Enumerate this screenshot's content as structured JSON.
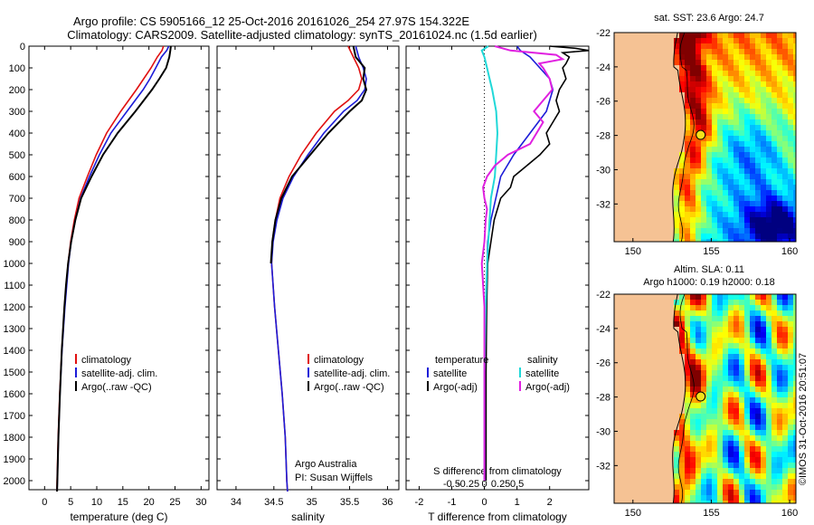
{
  "header": {
    "line1": "Argo profile: CS 5905166_12 25-Oct-2016 20161026_254 27.97S 154.322E",
    "line2": "Climatology: CARS2009. Satellite-adjusted climatology: synTS_20161024.nc (1.5d earlier)"
  },
  "chart_data": [
    {
      "type": "line",
      "panel": "temperature",
      "xlabel": "temperature (deg C)",
      "ylabel": "",
      "xlim": [
        -3,
        31.5
      ],
      "ylim": [
        2080,
        0
      ],
      "x_ticks": [
        "0",
        "5",
        "10",
        "15",
        "20",
        "25",
        "30"
      ],
      "y_ticks": [
        "0",
        "100",
        "200",
        "300",
        "400",
        "500",
        "600",
        "700",
        "800",
        "900",
        "1000",
        "1100",
        "1200",
        "1300",
        "1400",
        "1500",
        "1600",
        "1700",
        "1800",
        "1900",
        "2000"
      ],
      "legend": [
        "climatology",
        "satellite-adj. clim.",
        "Argo(..raw -QC)"
      ],
      "series": [
        {
          "name": "climatology",
          "color": "#e01010",
          "depth": [
            0,
            20,
            50,
            100,
            150,
            200,
            300,
            400,
            500,
            600,
            700,
            800,
            900,
            1000,
            1200,
            1400,
            1600,
            1800,
            2000,
            2050
          ],
          "values": [
            22.8,
            22.5,
            21.6,
            20.4,
            19.0,
            17.6,
            14.6,
            11.9,
            9.9,
            8.2,
            6.6,
            5.7,
            5.0,
            4.5,
            3.8,
            3.3,
            2.9,
            2.6,
            2.4,
            2.35
          ]
        },
        {
          "name": "satellite-adj. clim.",
          "color": "#1c1cd8",
          "depth": [
            0,
            20,
            50,
            100,
            150,
            200,
            300,
            400,
            500,
            600,
            700,
            800,
            900,
            1000,
            1200,
            1400,
            1600,
            1800,
            2000,
            2050
          ],
          "values": [
            23.8,
            23.4,
            22.4,
            21.3,
            20.2,
            18.9,
            15.8,
            12.7,
            10.5,
            8.6,
            6.9,
            5.9,
            5.1,
            4.6,
            3.9,
            3.35,
            2.95,
            2.65,
            2.45,
            2.4
          ]
        },
        {
          "name": "Argo(..raw -QC)",
          "color": "#000000",
          "depth": [
            0,
            20,
            50,
            100,
            150,
            200,
            300,
            400,
            500,
            600,
            700,
            800,
            900,
            1000,
            1100,
            1200,
            1400,
            1600,
            1800,
            2000,
            2050
          ],
          "values": [
            24.2,
            24.1,
            23.9,
            23.3,
            22.0,
            20.6,
            17.4,
            14.0,
            11.2,
            9.0,
            7.0,
            5.9,
            5.1,
            4.5,
            4.1,
            3.8,
            3.3,
            2.95,
            2.65,
            2.45,
            2.4
          ]
        }
      ]
    },
    {
      "type": "line",
      "panel": "salinity",
      "xlabel": "salinity",
      "xlim": [
        33.75,
        36.15
      ],
      "ylim": [
        2080,
        0
      ],
      "x_ticks": [
        "34",
        "34.5",
        "35",
        "35.5",
        "36"
      ],
      "legend": [
        "climatology",
        "satellite-adj. clim.",
        "Argo(..raw -QC)"
      ],
      "annotation": [
        "Argo Australia",
        "PI: Susan Wijffels"
      ],
      "series": [
        {
          "name": "climatology",
          "color": "#e01010",
          "depth": [
            0,
            50,
            100,
            150,
            200,
            250,
            300,
            400,
            500,
            600,
            700,
            800,
            900,
            1000,
            1200,
            1400,
            1600,
            1800,
            2000,
            2050
          ],
          "values": [
            35.48,
            35.55,
            35.62,
            35.66,
            35.62,
            35.48,
            35.3,
            35.06,
            34.86,
            34.7,
            34.58,
            34.52,
            34.48,
            34.47,
            34.51,
            34.56,
            34.61,
            34.65,
            34.67,
            34.68
          ]
        },
        {
          "name": "satellite-adj. clim.",
          "color": "#1c1cd8",
          "depth": [
            0,
            50,
            100,
            150,
            200,
            250,
            300,
            400,
            500,
            600,
            700,
            800,
            900,
            1000,
            1200,
            1400,
            1600,
            1800,
            2000,
            2050
          ],
          "values": [
            35.58,
            35.62,
            35.68,
            35.72,
            35.7,
            35.6,
            35.42,
            35.16,
            34.95,
            34.76,
            34.62,
            34.54,
            34.49,
            34.47,
            34.51,
            34.56,
            34.61,
            34.65,
            34.67,
            34.68
          ]
        },
        {
          "name": "Argo(..raw -QC)",
          "color": "#000000",
          "depth": [
            0,
            50,
            100,
            150,
            200,
            250,
            300,
            400,
            500,
            600,
            700,
            800,
            900,
            1000
          ],
          "values": [
            35.55,
            35.58,
            35.7,
            35.68,
            35.72,
            35.66,
            35.5,
            35.22,
            34.98,
            34.74,
            34.6,
            34.52,
            34.48,
            34.46
          ]
        }
      ]
    },
    {
      "type": "line",
      "panel": "difference",
      "xlabel_bottom": "T difference from climatology",
      "xlabel_top": "S difference from climatology",
      "xlim": [
        -2.4,
        3.2
      ],
      "ylim": [
        2080,
        0
      ],
      "x_ticks_T": [
        "-2",
        "-1",
        "0",
        "1",
        "2"
      ],
      "x_ticks_S": [
        "-0.5",
        "-0.25",
        "0",
        "0.25",
        "0.5"
      ],
      "legend_temperature": {
        "title": "temperature",
        "items": [
          "satellite",
          "Argo(-adj)"
        ]
      },
      "legend_salinity": {
        "title": "salinity",
        "items": [
          "satellite",
          "Argo(-adj)"
        ]
      },
      "series": [
        {
          "name": "temperature satellite",
          "color": "#1c1cd8",
          "depth": [
            0,
            20,
            50,
            100,
            150,
            200,
            300,
            400,
            500,
            600,
            700,
            800,
            900,
            1000,
            1200,
            1500,
            1800,
            2000
          ],
          "values": [
            1.0,
            1.1,
            1.4,
            1.7,
            2.0,
            2.1,
            1.9,
            1.4,
            0.9,
            0.5,
            0.35,
            0.2,
            0.1,
            0.08,
            0.05,
            0.03,
            0.02,
            0.02
          ]
        },
        {
          "name": "temperature Argo(-adj)",
          "color": "#000000",
          "depth": [
            0,
            10,
            20,
            30,
            50,
            80,
            100,
            150,
            200,
            250,
            300,
            350,
            400,
            450,
            500,
            550,
            600,
            650,
            700,
            750,
            800,
            850,
            900,
            950,
            1000,
            1200,
            1500,
            1800,
            2000
          ],
          "values": [
            2.0,
            2.8,
            3.2,
            2.4,
            2.6,
            2.5,
            2.4,
            2.5,
            2.3,
            2.2,
            2.3,
            2.1,
            1.9,
            2.0,
            1.7,
            1.3,
            0.9,
            0.8,
            0.5,
            0.4,
            0.3,
            0.25,
            0.2,
            0.15,
            0.1,
            0.07,
            0.05,
            0.05,
            0.05
          ]
        },
        {
          "name": "salinity satellite",
          "color": "#20d8d8",
          "depth": [
            0,
            20,
            50,
            100,
            150,
            200,
            300,
            400,
            500,
            600,
            700,
            800,
            1000,
            1200,
            1500,
            1800,
            2000
          ],
          "values": [
            0.03,
            -0.02,
            0.0,
            0.02,
            0.04,
            0.06,
            0.09,
            0.1,
            0.09,
            0.08,
            0.05,
            0.04,
            0.02,
            0.01,
            0.0,
            0.0,
            0.0
          ]
        },
        {
          "name": "salinity Argo(-adj)",
          "color": "#e020e0",
          "depth": [
            0,
            20,
            40,
            60,
            80,
            100,
            150,
            200,
            250,
            300,
            350,
            400,
            450,
            500,
            550,
            600,
            650,
            700,
            750,
            800,
            900,
            1000,
            1200,
            1500,
            2000
          ],
          "values": [
            0.08,
            0.2,
            0.55,
            0.6,
            0.42,
            0.45,
            0.5,
            0.52,
            0.45,
            0.38,
            0.45,
            0.4,
            0.35,
            0.18,
            0.08,
            0.02,
            -0.01,
            0.0,
            0.02,
            0.01,
            0.0,
            -0.02,
            0.0,
            0.0,
            0.0
          ]
        }
      ]
    },
    {
      "type": "heatmap",
      "panel": "map-sst",
      "title": "sat. SST: 23.6  Argo: 24.7",
      "xlim": [
        148.8,
        160.4
      ],
      "ylim": [
        -34.2,
        -22.0
      ],
      "x_ticks": [
        "150",
        "155",
        "160"
      ],
      "y_ticks": [
        "-22",
        "-24",
        "-26",
        "-28",
        "-30",
        "-32"
      ],
      "marker": {
        "lon": 154.322,
        "lat": -27.97
      }
    },
    {
      "type": "heatmap",
      "panel": "map-sla",
      "title": "Altim. SLA: 0.11",
      "subtitle": "Argo h1000: 0.19  h2000: 0.18",
      "xlim": [
        148.8,
        160.4
      ],
      "ylim": [
        -34.2,
        -22.0
      ],
      "x_ticks": [
        "150",
        "155",
        "160"
      ],
      "y_ticks": [
        "-22",
        "-24",
        "-26",
        "-28",
        "-30",
        "-32"
      ],
      "marker": {
        "lon": 154.322,
        "lat": -27.97
      }
    }
  ],
  "footer": {
    "credit": "©IMOS 31-Oct-2016 20:51:07"
  },
  "colors": {
    "land": "#f5c294",
    "coast": "#000000",
    "marker": "#f4e21a"
  }
}
